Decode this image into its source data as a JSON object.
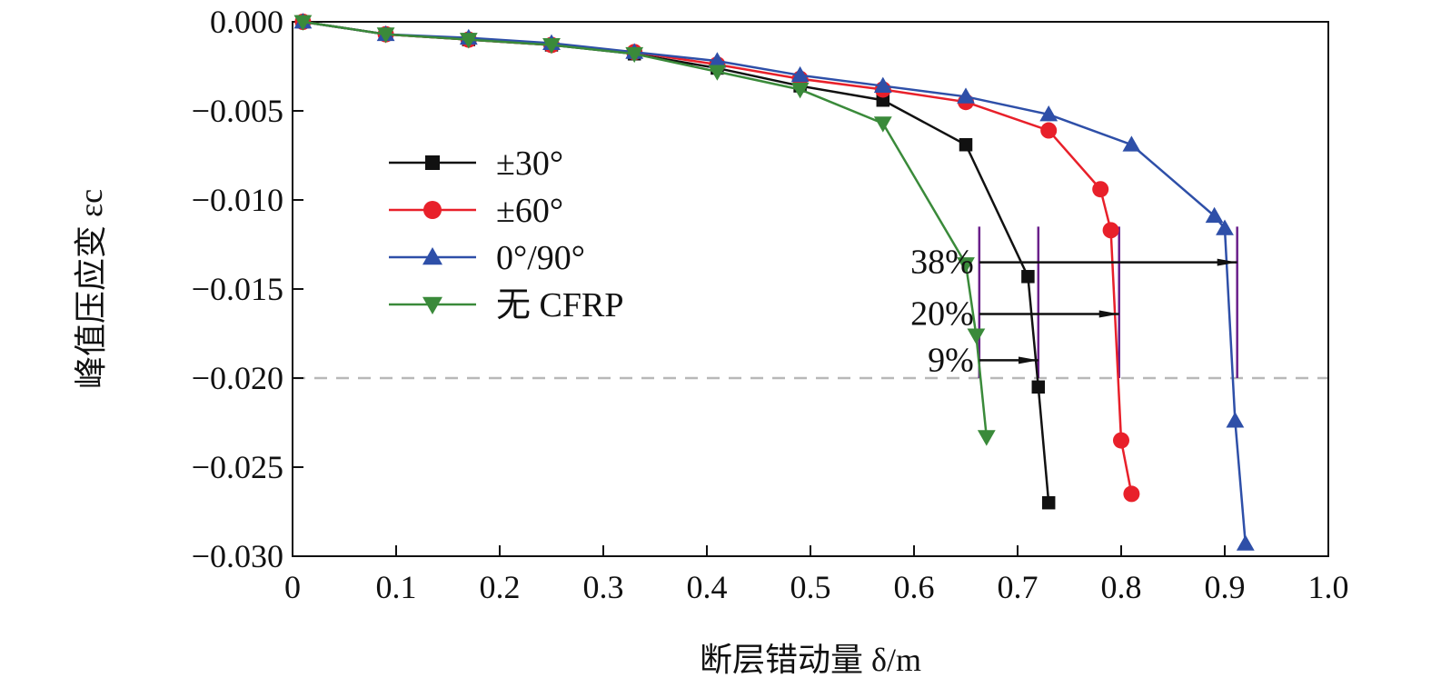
{
  "chart_data": {
    "type": "line",
    "xlabel": "断层错动量 δ/m",
    "ylabel": "峰值压应变 εc",
    "xlim": [
      0,
      1.0
    ],
    "ylim": [
      -0.03,
      0.0
    ],
    "x_ticks": [
      "0",
      "0.1",
      "0.2",
      "0.3",
      "0.4",
      "0.5",
      "0.6",
      "0.7",
      "0.8",
      "0.9",
      "1.0"
    ],
    "y_ticks": [
      "0.000",
      "−0.005",
      "−0.010",
      "−0.015",
      "−0.020",
      "−0.025",
      "−0.030"
    ],
    "legend_position": "center-left",
    "reference_line": {
      "y": -0.02,
      "style": "dashed",
      "color": "#b8b8b8"
    },
    "series": [
      {
        "name": "±30°",
        "color": "#111111",
        "marker": "square",
        "points": [
          [
            0.01,
            0.0
          ],
          [
            0.09,
            -0.0007
          ],
          [
            0.17,
            -0.001
          ],
          [
            0.25,
            -0.0013
          ],
          [
            0.33,
            -0.0018
          ],
          [
            0.41,
            -0.0026
          ],
          [
            0.49,
            -0.0036
          ],
          [
            0.57,
            -0.0044
          ],
          [
            0.65,
            -0.0069
          ],
          [
            0.71,
            -0.0143
          ],
          [
            0.72,
            -0.0205
          ],
          [
            0.73,
            -0.027
          ]
        ]
      },
      {
        "name": "±60°",
        "color": "#e8202a",
        "marker": "circle",
        "points": [
          [
            0.01,
            0.0
          ],
          [
            0.09,
            -0.0007
          ],
          [
            0.17,
            -0.001
          ],
          [
            0.25,
            -0.0013
          ],
          [
            0.33,
            -0.0017
          ],
          [
            0.41,
            -0.0024
          ],
          [
            0.49,
            -0.0032
          ],
          [
            0.57,
            -0.0038
          ],
          [
            0.65,
            -0.0045
          ],
          [
            0.73,
            -0.0061
          ],
          [
            0.78,
            -0.0094
          ],
          [
            0.79,
            -0.0117
          ],
          [
            0.8,
            -0.0235
          ],
          [
            0.81,
            -0.0265
          ]
        ]
      },
      {
        "name": "0°/90°",
        "color": "#2e4fa8",
        "marker": "triangle-up",
        "points": [
          [
            0.01,
            0.0
          ],
          [
            0.09,
            -0.0007
          ],
          [
            0.17,
            -0.0009
          ],
          [
            0.25,
            -0.0012
          ],
          [
            0.33,
            -0.0017
          ],
          [
            0.41,
            -0.0022
          ],
          [
            0.49,
            -0.003
          ],
          [
            0.57,
            -0.0036
          ],
          [
            0.65,
            -0.0042
          ],
          [
            0.73,
            -0.0052
          ],
          [
            0.81,
            -0.0069
          ],
          [
            0.89,
            -0.0109
          ],
          [
            0.9,
            -0.0116
          ],
          [
            0.91,
            -0.0224
          ],
          [
            0.92,
            -0.0293
          ]
        ]
      },
      {
        "name": "无 CFRP",
        "color": "#3a8a3a",
        "marker": "triangle-down",
        "points": [
          [
            0.01,
            0.0
          ],
          [
            0.09,
            -0.0007
          ],
          [
            0.17,
            -0.001
          ],
          [
            0.25,
            -0.0013
          ],
          [
            0.33,
            -0.0018
          ],
          [
            0.41,
            -0.0028
          ],
          [
            0.49,
            -0.0038
          ],
          [
            0.57,
            -0.0057
          ],
          [
            0.65,
            -0.0136
          ],
          [
            0.66,
            -0.0176
          ],
          [
            0.67,
            -0.0233
          ]
        ]
      }
    ],
    "annotations": [
      {
        "text": "38%",
        "from_x": 0.663,
        "to_x": 0.912,
        "y": -0.0135
      },
      {
        "text": "20%",
        "from_x": 0.663,
        "to_x": 0.798,
        "y": -0.0164
      },
      {
        "text": "9%",
        "from_x": 0.663,
        "to_x": 0.72,
        "y": -0.019
      }
    ],
    "marker_lines": {
      "color": "#6a1f8a",
      "x": [
        0.663,
        0.72,
        0.798,
        0.912
      ],
      "y_range": [
        -0.0115,
        -0.02
      ]
    }
  }
}
